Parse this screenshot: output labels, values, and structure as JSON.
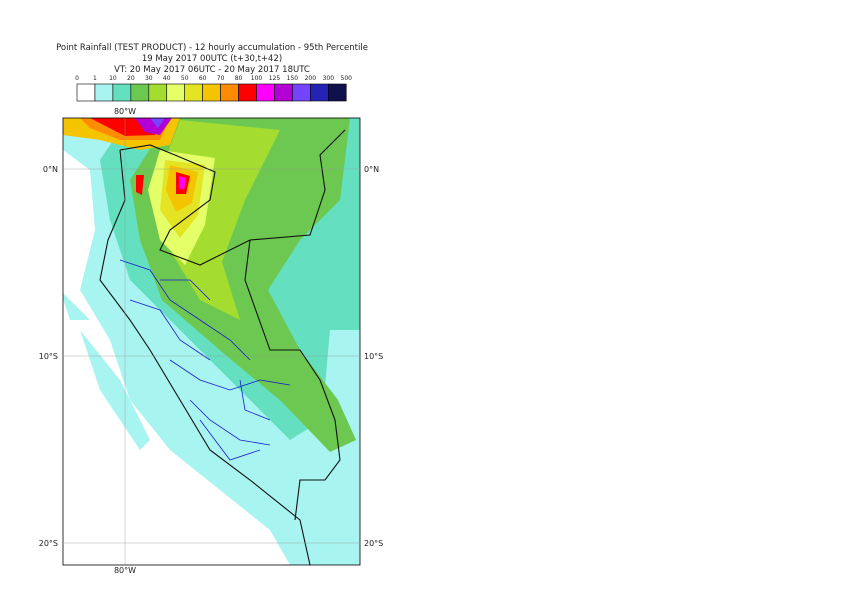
{
  "header": {
    "lines": [
      "Point Rainfall (TEST PRODUCT) - 12 hourly accumulation - 95th Percentile",
      "19 May 2017 00UTC (t+30,t+42)",
      "VT: 20 May 2017 06UTC - 20 May 2017 18UTC"
    ]
  },
  "legend": {
    "labels": [
      "0",
      "1",
      "10",
      "20",
      "30",
      "40",
      "50",
      "60",
      "70",
      "80",
      "100",
      "125",
      "150",
      "200",
      "300",
      "500"
    ],
    "colors": [
      "#ffffff",
      "#a8f4f0",
      "#64e0c0",
      "#6cc850",
      "#a4dc30",
      "#e4ff68",
      "#e4e424",
      "#f4c400",
      "#ff8c00",
      "#ff0000",
      "#ff00ff",
      "#b400d4",
      "#7444ff",
      "#2424b4",
      "#10104c"
    ]
  },
  "map": {
    "lon_labels": [
      "80°W",
      "80°W"
    ],
    "lat_labels": [
      "0°N",
      "0°N",
      "10°S",
      "10°S",
      "20°S",
      "20°S"
    ]
  }
}
